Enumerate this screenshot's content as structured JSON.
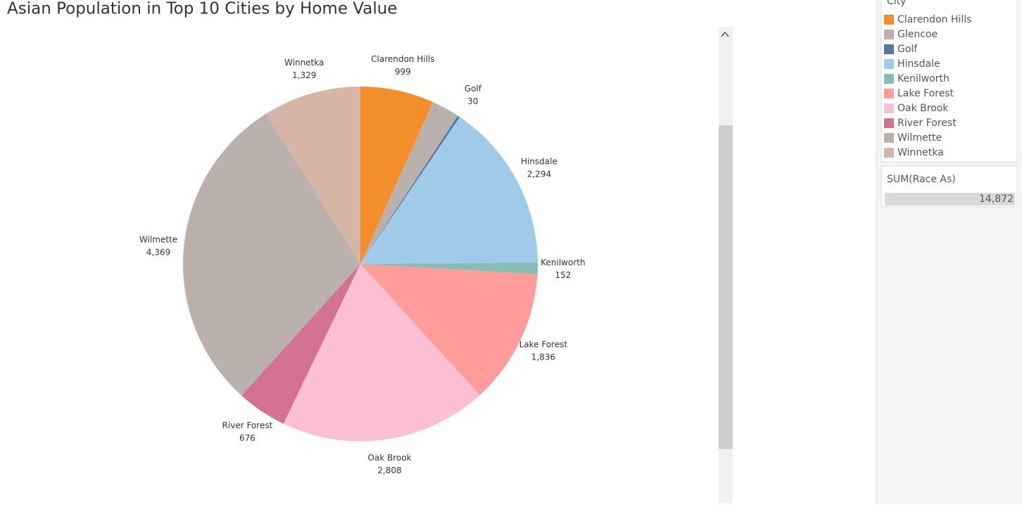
{
  "chart_data": {
    "type": "pie",
    "title": "Asian Population in Top 10 Cities by Home Value",
    "legend_title": "City",
    "categories": [
      "Clarendon Hills",
      "Glencoe",
      "Golf",
      "Hinsdale",
      "Kenilworth",
      "Lake Forest",
      "Oak Brook",
      "River Forest",
      "Wilmette",
      "Winnetka"
    ],
    "values": [
      999,
      379,
      30,
      2294,
      152,
      1836,
      2808,
      676,
      4369,
      1329
    ],
    "value_labels": [
      "999",
      null,
      "30",
      "2,294",
      "152",
      "1,836",
      "2,808",
      "676",
      "4,369",
      "1,329"
    ],
    "colors": [
      "#f28e2b",
      "#bab0ac",
      "#4e79a7",
      "#a0cbe8",
      "#86bcb6",
      "#ff9d9a",
      "#fabfd2",
      "#d37295",
      "#bab0ac",
      "#d7b5a6"
    ],
    "size_legend": {
      "title": "SUM(Race As)",
      "total": {
        "value": 14872,
        "label": "14,872"
      }
    }
  }
}
